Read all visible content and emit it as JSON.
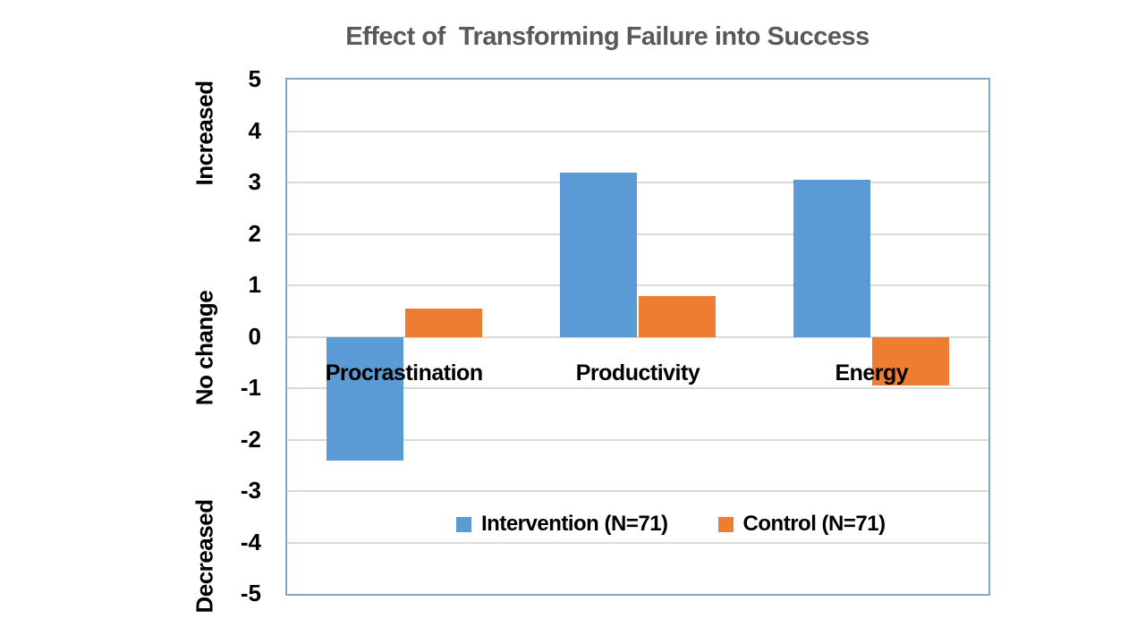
{
  "title": "Effect of  Transforming Failure into Success",
  "colors": {
    "intervention": "#5B9BD5",
    "control": "#ED7D31",
    "title_text": "#595959",
    "gridline": "#D9D9D9",
    "plot_border": "#7FA8CB",
    "label_text": "#000000",
    "background": "#FFFFFF"
  },
  "legend": {
    "items": [
      {
        "label": "Intervention (N=71)",
        "color": "#5B9BD5"
      },
      {
        "label": "Control (N=71)",
        "color": "#ED7D31"
      }
    ]
  },
  "chart_data": {
    "type": "bar",
    "title": "Effect of  Transforming Failure into Success",
    "categories": [
      "Procrastination",
      "Productivity",
      "Energy"
    ],
    "series": [
      {
        "name": "Intervention (N=71)",
        "color": "#5B9BD5",
        "values": [
          -2.4,
          3.2,
          3.05
        ]
      },
      {
        "name": "Control (N=71)",
        "color": "#ED7D31",
        "values": [
          0.55,
          0.8,
          -0.95
        ]
      }
    ],
    "xlabel": "",
    "ylabel": "",
    "ylim": [
      -5,
      5
    ],
    "y_tick_step": 1,
    "y_tick_labels": [
      "5",
      "4",
      "3",
      "2",
      "1",
      "0",
      "-1",
      "-2",
      "-3",
      "-4",
      "-5"
    ],
    "y_zone_labels": [
      {
        "text": "Increased",
        "center_value": 3.95
      },
      {
        "text": "No change",
        "center_value": -0.22
      },
      {
        "text": "Decreased",
        "center_value": -4.27
      }
    ],
    "grid": true,
    "gridline_values": [
      4,
      3,
      2,
      1,
      0,
      -1,
      -2,
      -3,
      -4
    ],
    "legend_position": "bottom-inside"
  }
}
